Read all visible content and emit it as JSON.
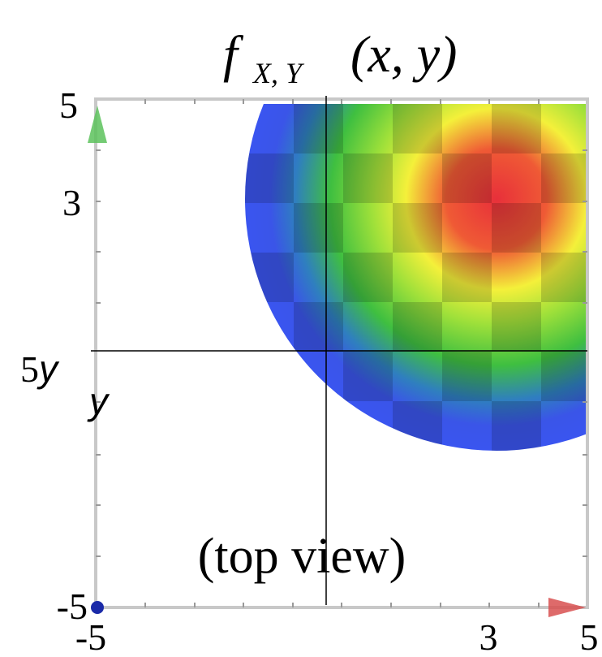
{
  "title": {
    "main": "f",
    "subscript": "X, Y",
    "args": "(x, y)"
  },
  "y_labels": {
    "top": "5",
    "middle": "3",
    "center": "5",
    "bottom": "-5"
  },
  "y_name": {
    "beside": "y",
    "below": "y"
  },
  "x_labels": {
    "left": "-5",
    "middle": "3",
    "right": "5"
  },
  "caption": "(top view)"
}
